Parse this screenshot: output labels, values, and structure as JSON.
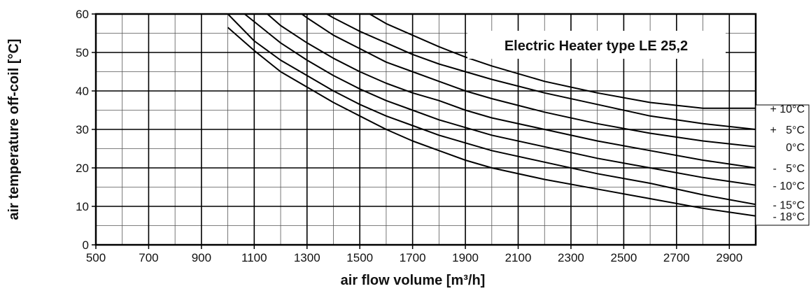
{
  "chart_data": {
    "type": "line",
    "title": "Electric Heater type LE 25,2",
    "xlabel": "air flow volume [m³/h]",
    "ylabel": "air temperature off-coil [°C]",
    "xlim": [
      500,
      3000
    ],
    "ylim": [
      0,
      60
    ],
    "x_ticks": [
      500,
      700,
      900,
      1100,
      1300,
      1500,
      1700,
      1900,
      2100,
      2300,
      2500,
      2700,
      2900
    ],
    "y_ticks": [
      0,
      10,
      20,
      30,
      40,
      50,
      60
    ],
    "x_minor_step": 100,
    "y_minor_step": 5,
    "grid": true,
    "x": [
      1000,
      1100,
      1200,
      1300,
      1400,
      1500,
      1600,
      1700,
      1800,
      1900,
      2000,
      2200,
      2400,
      2600,
      2800,
      3000
    ],
    "series": [
      {
        "name": "+ 10°C",
        "values": [
          null,
          null,
          null,
          null,
          65.5,
          61.5,
          57.5,
          54.5,
          51.5,
          48.8,
          46.5,
          42.5,
          39.5,
          37,
          35.5,
          35.5
        ]
      },
      {
        "name": "+   5°C",
        "values": [
          null,
          null,
          null,
          63,
          59,
          55.5,
          52.5,
          49.5,
          47,
          45,
          43,
          39.5,
          36.5,
          33.5,
          31.5,
          30
        ]
      },
      {
        "name": "0°C",
        "values": [
          null,
          null,
          64,
          59,
          54.5,
          51,
          47.5,
          45,
          42.5,
          40,
          38,
          34.5,
          31.5,
          29,
          27,
          25.5
        ]
      },
      {
        "name": "-   5°C",
        "values": [
          null,
          63,
          57,
          52.5,
          48.5,
          45,
          42,
          39.5,
          37.5,
          35,
          33,
          30,
          27,
          24.5,
          22,
          20
        ]
      },
      {
        "name": "- 10°C",
        "values": [
          63.5,
          58,
          52.5,
          48,
          44,
          40.5,
          37.5,
          35,
          32.5,
          30.5,
          28.5,
          25.5,
          22.5,
          20,
          17.5,
          15.5
        ]
      },
      {
        "name": "- 15°C",
        "values": [
          60,
          53,
          48,
          44,
          40,
          36.5,
          33.5,
          31,
          28.5,
          26.5,
          24.5,
          21.5,
          18.5,
          16,
          13,
          10.5
        ]
      },
      {
        "name": "- 18°C",
        "values": [
          56.5,
          50.5,
          45,
          41,
          37,
          33.5,
          30,
          27,
          24.5,
          22,
          20,
          17,
          14.5,
          12,
          9.5,
          7.5
        ]
      }
    ],
    "legend_position": "right"
  }
}
